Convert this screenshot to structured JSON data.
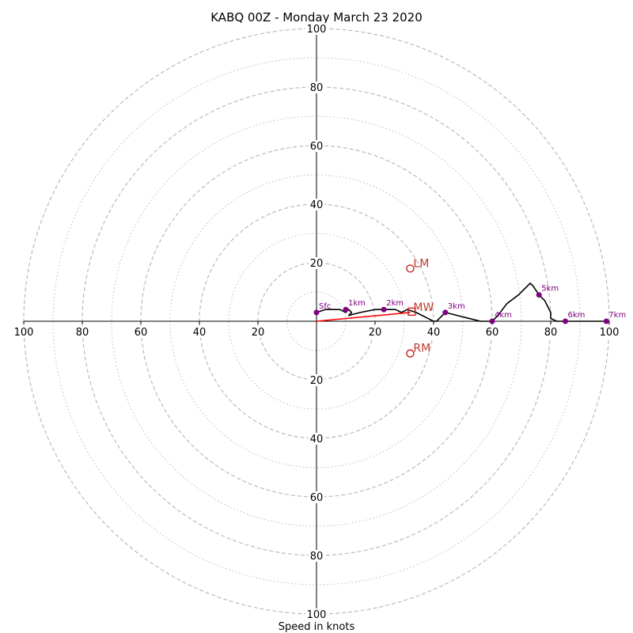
{
  "chart_data": {
    "type": "hodograph",
    "title": "KABQ 00Z - Monday March 23 2020",
    "xlabel": "Speed in knots",
    "max_speed": 100,
    "rings_major": [
      20,
      40,
      60,
      80,
      100
    ],
    "rings_minor": [
      10,
      30,
      50,
      70,
      90
    ],
    "tick_labels": [
      "20",
      "40",
      "60",
      "80",
      "100"
    ],
    "colors": {
      "rings": "#bbbbbb",
      "hodograph": "#000000",
      "height_markers": "#800080",
      "storm_motion": "#cc1111",
      "mean_wind_vector": "#ff0000"
    },
    "hodograph": {
      "u": [
        0,
        3,
        8,
        10,
        11,
        12,
        11,
        15,
        20,
        23,
        27,
        29,
        31,
        34,
        36,
        38,
        40,
        41,
        42,
        44,
        48,
        52,
        56,
        60,
        62,
        65,
        69,
        73,
        74,
        76,
        78,
        79,
        80,
        80,
        82,
        85,
        90,
        95,
        100
      ],
      "v": [
        3,
        4,
        4,
        3,
        4,
        3,
        2,
        3,
        4,
        4,
        4,
        3,
        4,
        3,
        2,
        1,
        0,
        0,
        1,
        3,
        2,
        1,
        0,
        0,
        2,
        6,
        9,
        13,
        12,
        9,
        7,
        5,
        3,
        1,
        0,
        0,
        0,
        0,
        0
      ]
    },
    "height_markers": [
      {
        "label": "Sfc",
        "u": 0,
        "v": 3
      },
      {
        "label": "1km",
        "u": 10,
        "v": 4
      },
      {
        "label": "2km",
        "u": 23,
        "v": 4
      },
      {
        "label": "3km",
        "u": 44,
        "v": 3
      },
      {
        "label": "4km",
        "u": 60,
        "v": 0
      },
      {
        "label": "5km",
        "u": 76,
        "v": 9
      },
      {
        "label": "6km",
        "u": 85,
        "v": 0
      },
      {
        "label": "7km",
        "u": 99,
        "v": 0
      }
    ],
    "storm_motion": [
      {
        "label": "LM",
        "u": 32,
        "v": 18,
        "marker": "circle"
      },
      {
        "label": "RM",
        "u": 32,
        "v": -11,
        "marker": "circle"
      },
      {
        "label": "MW",
        "u": 32,
        "v": 3,
        "marker": "square"
      }
    ],
    "mean_wind_vector": {
      "u": 32,
      "v": 3
    }
  }
}
